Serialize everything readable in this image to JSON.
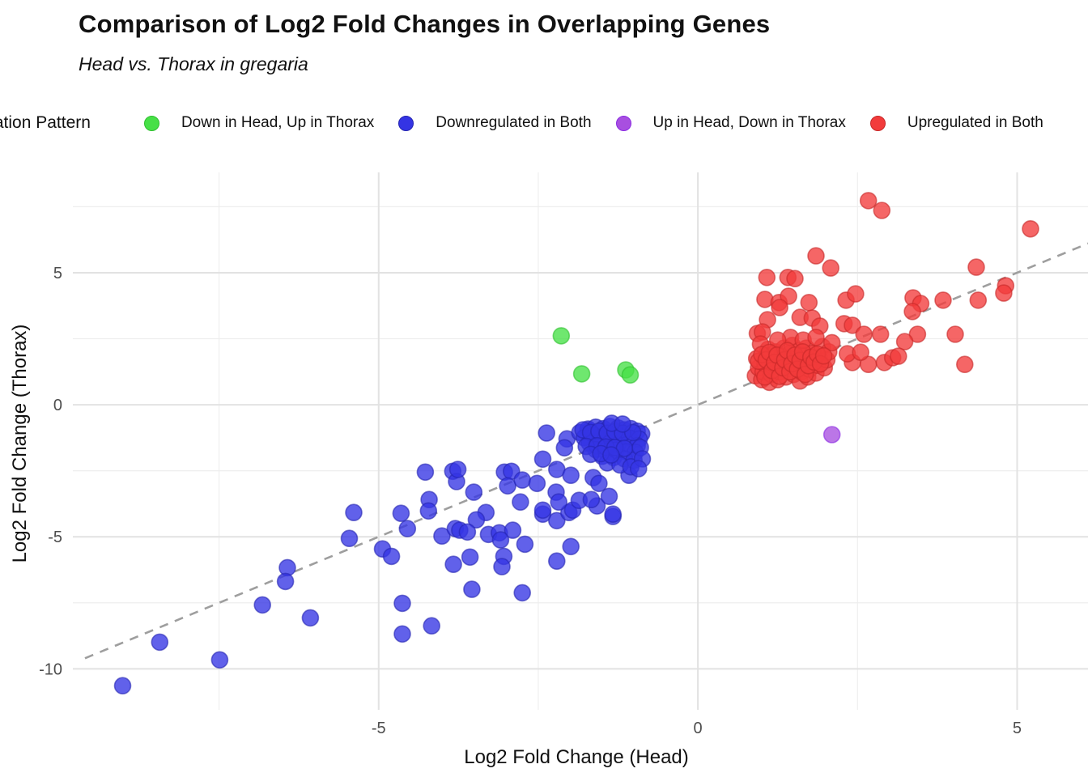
{
  "header": {
    "title": "Comparison of Log2 Fold Changes in Overlapping Genes",
    "subtitle": "Head vs. Thorax in gregaria"
  },
  "legend": {
    "title": "Regulation Pattern",
    "items": [
      {
        "label": "Down in Head, Up in Thorax",
        "color": "#47E047",
        "stroke": "#2FBF2F"
      },
      {
        "label": "Downregulated in Both",
        "color": "#3434E4",
        "stroke": "#2525B0"
      },
      {
        "label": "Up in Head, Down in Thorax",
        "color": "#A84FE0",
        "stroke": "#8A2BE2"
      },
      {
        "label": "Upregulated in Both",
        "color": "#F23B3B",
        "stroke": "#C62828"
      }
    ]
  },
  "chart_data": {
    "type": "scatter",
    "title": "Comparison of Log2 Fold Changes in Overlapping Genes",
    "subtitle": "Head vs. Thorax in gregaria",
    "xlabel": "Log2 Fold Change (Head)",
    "ylabel": "Log2 Fold Change (Thorax)",
    "xlim": [
      -9.79,
      6.11
    ],
    "ylim": [
      -11.43,
      8.8
    ],
    "x_ticks": [
      {
        "v": -5,
        "label": "-5"
      },
      {
        "v": 0,
        "label": "0"
      },
      {
        "v": 5,
        "label": "5"
      }
    ],
    "y_ticks": [
      {
        "v": 5,
        "label": "5"
      },
      {
        "v": 0,
        "label": "0"
      },
      {
        "v": -5,
        "label": "-5"
      },
      {
        "v": -10,
        "label": "-10"
      }
    ],
    "x_minor": [
      -7.5,
      -2.5,
      2.5
    ],
    "y_minor": [
      7.5,
      2.5,
      -2.5,
      -7.5
    ],
    "grid": true,
    "legend_position": "top",
    "identity_line": {
      "equation": "y = x",
      "from": -9.6,
      "to": 6.11,
      "style": "dashed",
      "color": "#9E9E9E"
    },
    "series": [
      {
        "name": "Down in Head, Up in Thorax",
        "color": "#47E047",
        "stroke": "#2FBF2F",
        "points": [
          [
            -2.14,
            2.61
          ],
          [
            -1.82,
            1.17
          ],
          [
            -1.13,
            1.32
          ],
          [
            -1.06,
            1.13
          ]
        ]
      },
      {
        "name": "Downregulated in Both",
        "color": "#3434E4",
        "stroke": "#2525B0",
        "points": [
          [
            -4.27,
            -2.55
          ],
          [
            -3.84,
            -2.52
          ],
          [
            -3.78,
            -2.91
          ],
          [
            -5.39,
            -4.08
          ],
          [
            -4.65,
            -4.11
          ],
          [
            -4.21,
            -3.59
          ],
          [
            -4.22,
            -4.02
          ],
          [
            -4.55,
            -4.69
          ],
          [
            -5.46,
            -5.06
          ],
          [
            -4.01,
            -4.97
          ],
          [
            -3.8,
            -4.69
          ],
          [
            -4.94,
            -5.46
          ],
          [
            -4.8,
            -5.74
          ],
          [
            -6.43,
            -6.17
          ],
          [
            -6.46,
            -6.69
          ],
          [
            -3.83,
            -6.04
          ],
          [
            -6.82,
            -7.58
          ],
          [
            -6.07,
            -8.07
          ],
          [
            -4.63,
            -7.52
          ],
          [
            -4.17,
            -8.37
          ],
          [
            -4.63,
            -8.68
          ],
          [
            -8.43,
            -8.99
          ],
          [
            -7.49,
            -9.66
          ],
          [
            -9.01,
            -10.64
          ],
          [
            -3.32,
            -4.08
          ],
          [
            -3.47,
            -4.36
          ],
          [
            -3.73,
            -4.75
          ],
          [
            -3.61,
            -4.82
          ],
          [
            -3.28,
            -4.91
          ],
          [
            -3.11,
            -4.85
          ],
          [
            -2.9,
            -4.75
          ],
          [
            -3.09,
            -5.12
          ],
          [
            -2.71,
            -5.28
          ],
          [
            -2.43,
            -4.14
          ],
          [
            -2.21,
            -4.39
          ],
          [
            -2.02,
            -4.08
          ],
          [
            -1.58,
            -3.83
          ],
          [
            -1.33,
            -4.23
          ],
          [
            -3.57,
            -5.77
          ],
          [
            -3.04,
            -5.74
          ],
          [
            -3.07,
            -6.13
          ],
          [
            -1.99,
            -5.37
          ],
          [
            -2.21,
            -5.92
          ],
          [
            -3.54,
            -6.99
          ],
          [
            -2.75,
            -7.12
          ],
          [
            -3.76,
            -2.45
          ],
          [
            -3.51,
            -3.31
          ],
          [
            -3.03,
            -2.55
          ],
          [
            -2.92,
            -2.52
          ],
          [
            -2.98,
            -3.07
          ],
          [
            -2.75,
            -2.85
          ],
          [
            -2.78,
            -3.68
          ],
          [
            -2.52,
            -2.98
          ],
          [
            -2.21,
            -2.45
          ],
          [
            -1.99,
            -2.67
          ],
          [
            -2.22,
            -3.31
          ],
          [
            -2.18,
            -3.68
          ],
          [
            -2.43,
            -3.99
          ],
          [
            -1.96,
            -3.99
          ],
          [
            -1.86,
            -3.62
          ],
          [
            -1.64,
            -2.76
          ],
          [
            -1.55,
            -2.98
          ],
          [
            -1.67,
            -3.59
          ],
          [
            -1.39,
            -3.47
          ],
          [
            -1.33,
            -4.14
          ],
          [
            -1.08,
            -2.67
          ],
          [
            -2.37,
            -1.07
          ],
          [
            -2.05,
            -1.29
          ],
          [
            -2.43,
            -2.06
          ],
          [
            -2.09,
            -1.63
          ],
          [
            -1.7,
            -0.98
          ],
          [
            -1.85,
            -1.05
          ],
          [
            -1.72,
            -0.92
          ],
          [
            -1.6,
            -0.85
          ],
          [
            -1.48,
            -0.9
          ],
          [
            -1.38,
            -0.82
          ],
          [
            -1.25,
            -0.88
          ],
          [
            -1.15,
            -0.95
          ],
          [
            -1.05,
            -0.9
          ],
          [
            -0.95,
            -1.0
          ],
          [
            -0.88,
            -1.1
          ],
          [
            -1.78,
            -1.25
          ],
          [
            -1.62,
            -1.18
          ],
          [
            -1.5,
            -1.22
          ],
          [
            -1.35,
            -1.15
          ],
          [
            -1.22,
            -1.2
          ],
          [
            -1.08,
            -1.25
          ],
          [
            -0.92,
            -1.3
          ],
          [
            -1.7,
            -1.45
          ],
          [
            -1.55,
            -1.42
          ],
          [
            -1.4,
            -1.48
          ],
          [
            -1.25,
            -1.52
          ],
          [
            -1.1,
            -1.5
          ],
          [
            -0.95,
            -1.55
          ],
          [
            -1.6,
            -1.7
          ],
          [
            -1.45,
            -1.75
          ],
          [
            -1.28,
            -1.72
          ],
          [
            -1.12,
            -1.78
          ],
          [
            -0.98,
            -1.8
          ],
          [
            -1.5,
            -1.95
          ],
          [
            -1.32,
            -2.0
          ],
          [
            -1.15,
            -2.05
          ],
          [
            -1.0,
            -2.1
          ],
          [
            -1.42,
            -2.2
          ],
          [
            -1.22,
            -2.28
          ],
          [
            -1.05,
            -2.35
          ],
          [
            -1.8,
            -0.95
          ],
          [
            -1.68,
            -1.05
          ],
          [
            -1.55,
            -1.0
          ],
          [
            -1.42,
            -1.08
          ],
          [
            -1.3,
            -1.02
          ],
          [
            -1.18,
            -1.08
          ],
          [
            -1.02,
            -1.05
          ],
          [
            -1.75,
            -1.58
          ],
          [
            -1.58,
            -1.55
          ],
          [
            -1.44,
            -1.6
          ],
          [
            -1.3,
            -1.62
          ],
          [
            -1.15,
            -1.65
          ],
          [
            -1.68,
            -1.88
          ],
          [
            -1.52,
            -1.85
          ],
          [
            -1.36,
            -1.9
          ],
          [
            -0.9,
            -1.62
          ],
          [
            -0.87,
            -2.05
          ],
          [
            -0.93,
            -2.42
          ],
          [
            -1.35,
            -0.7
          ],
          [
            -1.18,
            -0.73
          ]
        ]
      },
      {
        "name": "Up in Head, Down in Thorax",
        "color": "#A84FE0",
        "stroke": "#8A2BE2",
        "points": [
          [
            2.1,
            -1.13
          ]
        ]
      },
      {
        "name": "Upregulated in Both",
        "color": "#F23B3B",
        "stroke": "#C62828",
        "points": [
          [
            2.67,
            7.73
          ],
          [
            2.88,
            7.36
          ],
          [
            5.21,
            6.66
          ],
          [
            1.85,
            5.64
          ],
          [
            2.08,
            5.18
          ],
          [
            1.08,
            4.82
          ],
          [
            1.41,
            4.82
          ],
          [
            1.52,
            4.78
          ],
          [
            4.36,
            5.21
          ],
          [
            4.82,
            4.51
          ],
          [
            1.05,
            3.99
          ],
          [
            1.27,
            3.87
          ],
          [
            1.42,
            4.11
          ],
          [
            1.74,
            3.87
          ],
          [
            2.32,
            3.96
          ],
          [
            2.47,
            4.2
          ],
          [
            3.37,
            4.05
          ],
          [
            3.49,
            3.83
          ],
          [
            3.84,
            3.96
          ],
          [
            4.39,
            3.96
          ],
          [
            4.79,
            4.23
          ],
          [
            1.09,
            3.22
          ],
          [
            1.28,
            3.68
          ],
          [
            1.6,
            3.31
          ],
          [
            1.79,
            3.28
          ],
          [
            1.91,
            2.98
          ],
          [
            2.29,
            3.07
          ],
          [
            2.42,
            3.01
          ],
          [
            2.6,
            2.67
          ],
          [
            2.86,
            2.67
          ],
          [
            3.44,
            2.67
          ],
          [
            3.24,
            2.39
          ],
          [
            4.03,
            2.67
          ],
          [
            0.93,
            2.7
          ],
          [
            1.01,
            2.76
          ],
          [
            4.18,
            1.53
          ],
          [
            2.42,
            1.6
          ],
          [
            2.67,
            1.53
          ],
          [
            2.92,
            1.6
          ],
          [
            3.05,
            1.78
          ],
          [
            3.14,
            1.84
          ],
          [
            2.34,
            1.93
          ],
          [
            2.55,
            1.99
          ],
          [
            3.36,
            3.53
          ],
          [
            0.9,
            1.1
          ],
          [
            0.95,
            1.4
          ],
          [
            0.92,
            1.75
          ],
          [
            1.0,
            0.95
          ],
          [
            1.02,
            1.25
          ],
          [
            1.05,
            1.55
          ],
          [
            1.08,
            1.85
          ],
          [
            1.1,
            2.1
          ],
          [
            1.12,
            0.85
          ],
          [
            1.15,
            1.15
          ],
          [
            1.18,
            1.45
          ],
          [
            1.2,
            1.75
          ],
          [
            1.22,
            2.0
          ],
          [
            1.25,
            0.95
          ],
          [
            1.28,
            1.25
          ],
          [
            1.3,
            1.55
          ],
          [
            1.32,
            1.85
          ],
          [
            1.35,
            2.15
          ],
          [
            1.38,
            1.05
          ],
          [
            1.4,
            1.35
          ],
          [
            1.42,
            1.65
          ],
          [
            1.45,
            1.95
          ],
          [
            1.48,
            2.25
          ],
          [
            1.5,
            1.15
          ],
          [
            1.52,
            1.45
          ],
          [
            1.55,
            1.75
          ],
          [
            1.58,
            2.05
          ],
          [
            1.6,
            0.9
          ],
          [
            1.62,
            1.25
          ],
          [
            1.65,
            1.55
          ],
          [
            1.68,
            1.85
          ],
          [
            1.7,
            2.15
          ],
          [
            1.72,
            1.05
          ],
          [
            1.75,
            1.35
          ],
          [
            1.78,
            1.65
          ],
          [
            1.8,
            1.95
          ],
          [
            1.85,
            1.2
          ],
          [
            1.88,
            1.5
          ],
          [
            1.9,
            1.8
          ],
          [
            1.95,
            2.2
          ],
          [
            1.98,
            1.4
          ],
          [
            2.02,
            1.7
          ],
          [
            2.05,
            2.0
          ],
          [
            2.1,
            2.35
          ],
          [
            1.45,
            2.55
          ],
          [
            1.25,
            2.45
          ],
          [
            1.65,
            2.45
          ],
          [
            0.98,
            2.3
          ],
          [
            1.85,
            2.55
          ],
          [
            0.95,
            1.65
          ],
          [
            1.0,
            1.9
          ],
          [
            1.05,
            1.05
          ],
          [
            1.07,
            1.7
          ],
          [
            1.12,
            1.98
          ],
          [
            1.16,
            1.3
          ],
          [
            1.2,
            1.6
          ],
          [
            1.24,
            1.88
          ],
          [
            1.28,
            1.08
          ],
          [
            1.33,
            1.4
          ],
          [
            1.36,
            1.7
          ],
          [
            1.4,
            2.05
          ],
          [
            1.44,
            1.25
          ],
          [
            1.47,
            1.55
          ],
          [
            1.52,
            1.88
          ],
          [
            1.56,
            1.35
          ],
          [
            1.6,
            1.68
          ],
          [
            1.64,
            2.0
          ],
          [
            1.68,
            1.15
          ],
          [
            1.73,
            1.48
          ],
          [
            1.77,
            1.8
          ],
          [
            1.82,
            1.62
          ],
          [
            1.87,
            1.92
          ],
          [
            1.92,
            1.55
          ],
          [
            1.97,
            1.85
          ]
        ]
      }
    ]
  },
  "style": {
    "grid_major_color": "#e2e2e2",
    "grid_minor_color": "#eeeeee",
    "tick_label_color": "#4d4d4d",
    "background": "#ffffff"
  }
}
